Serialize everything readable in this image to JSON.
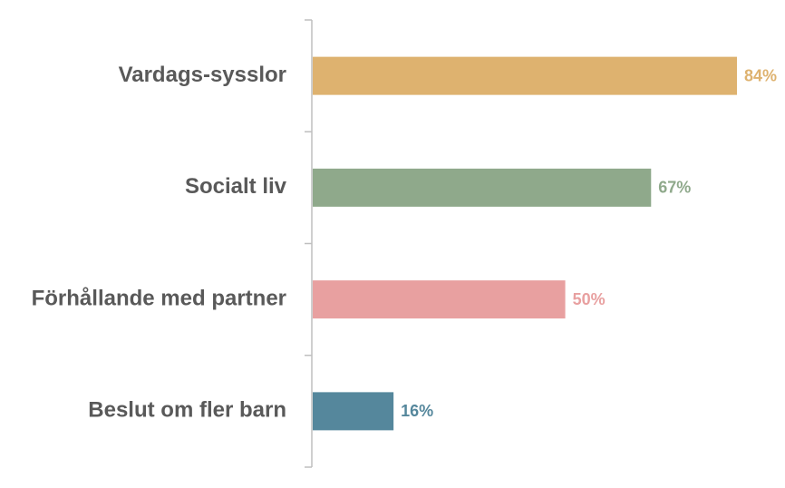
{
  "chart_data": {
    "type": "barh",
    "categories": [
      "Vardags-sysslor",
      "Socialt liv",
      "Förhållande med partner",
      "Beslut om fler barn"
    ],
    "values": [
      84,
      67,
      50,
      16
    ],
    "value_labels": [
      "84%",
      "67%",
      "50%",
      "16%"
    ],
    "colors": [
      "#deb26f",
      "#8fa98b",
      "#e8a0a0",
      "#55879c"
    ]
  }
}
